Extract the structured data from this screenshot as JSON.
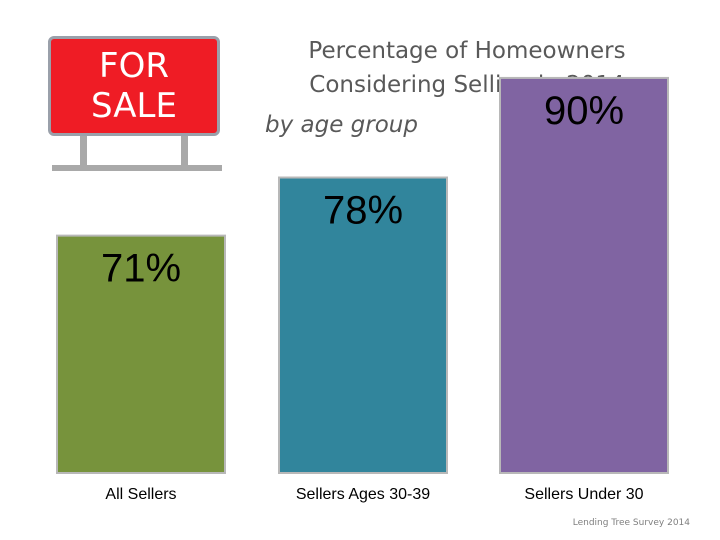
{
  "sign": {
    "line1": "FOR",
    "line2": "SALE"
  },
  "chart_data": {
    "type": "bar",
    "title": "Percentage of Homeowners Considering Selling in 2014",
    "subtitle": "by age group",
    "categories": [
      "All Sellers",
      "Sellers Ages 30-39",
      "Sellers Under 30"
    ],
    "values": [
      71,
      78,
      90
    ],
    "value_labels": [
      "71%",
      "78%",
      "90%"
    ],
    "colors": [
      "#77933c",
      "#31859c",
      "#8064a2"
    ],
    "unit": "%",
    "grid": false,
    "legend": "none"
  },
  "source": "Lending Tree Survey 2014"
}
